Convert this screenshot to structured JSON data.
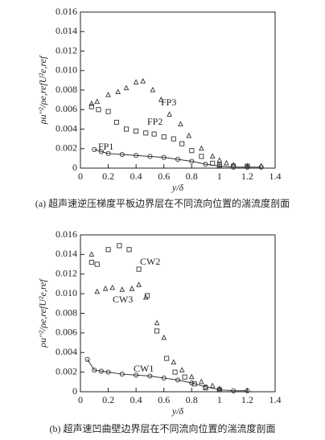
{
  "chart_data": [
    {
      "type": "scatter",
      "caption": "(a) 超声速逆压梯度平板边界层在不同流向位置的湍流度剖面",
      "x_label": "y/δ",
      "y_label": "ρu′′²/ρe,refU²e,ref",
      "xlim": [
        0,
        1.4
      ],
      "ylim": [
        0,
        0.016
      ],
      "xticks": [
        0,
        0.2,
        0.4,
        0.6,
        0.8,
        1,
        1.2,
        1.4
      ],
      "yticks": [
        0,
        0.002,
        0.004,
        0.006,
        0.008,
        {
          "value": 0.01,
          "label": "0.010"
        },
        0.012,
        0.014,
        0.016
      ],
      "series": [
        {
          "name": "FP1",
          "color": "#333333",
          "marker": "circle",
          "line": true,
          "x": [
            0.1,
            0.15,
            0.2,
            0.3,
            0.4,
            0.5,
            0.6,
            0.7,
            0.8,
            0.9,
            1.0,
            1.1,
            1.2,
            1.3
          ],
          "values": [
            0.0019,
            0.0017,
            0.0015,
            0.0014,
            0.0013,
            0.0012,
            0.0011,
            0.0009,
            0.0007,
            0.0004,
            0.0002,
            0.0001,
            0.0001,
            0.0001
          ]
        },
        {
          "name": "FP2",
          "color": "#333333",
          "marker": "square",
          "line": false,
          "x": [
            0.08,
            0.13,
            0.2,
            0.26,
            0.33,
            0.4,
            0.47,
            0.53,
            0.6,
            0.67,
            0.73,
            0.8,
            0.87,
            0.95,
            1.0,
            1.1,
            1.2
          ],
          "values": [
            0.0063,
            0.006,
            0.0058,
            0.0047,
            0.004,
            0.0038,
            0.0036,
            0.0035,
            0.0032,
            0.003,
            0.0025,
            0.0018,
            0.0012,
            0.0005,
            0.0003,
            0.0002,
            0.0002
          ]
        },
        {
          "name": "FP3",
          "color": "#333333",
          "marker": "triangle",
          "line": false,
          "x": [
            0.08,
            0.12,
            0.2,
            0.27,
            0.33,
            0.4,
            0.45,
            0.52,
            0.58,
            0.64,
            0.72,
            0.78,
            0.87,
            0.95,
            1.0,
            1.05,
            1.1,
            1.2,
            1.3
          ],
          "values": [
            0.0066,
            0.0068,
            0.0075,
            0.0078,
            0.0082,
            0.0088,
            0.0089,
            0.008,
            0.007,
            0.0055,
            0.0045,
            0.0033,
            0.002,
            0.0012,
            0.0008,
            0.0005,
            0.0003,
            0.0002,
            0.0002
          ]
        }
      ]
    },
    {
      "type": "scatter",
      "caption": "(b) 超声速凹曲壁边界层在不同流向位置的湍流度剖面",
      "x_label": "y/δ",
      "y_label": "ρu′′²/ρe,refU²e,ref",
      "xlim": [
        0,
        1.4
      ],
      "ylim": [
        0,
        0.016
      ],
      "xticks": [
        0,
        0.2,
        0.4,
        0.6,
        0.8,
        1,
        1.2,
        1.4
      ],
      "yticks": [
        0,
        0.002,
        0.004,
        0.006,
        0.008,
        {
          "value": 0.01,
          "label": "0.010"
        },
        0.012,
        0.014,
        0.016
      ],
      "series": [
        {
          "name": "CW1",
          "color": "#333333",
          "marker": "circle",
          "line": true,
          "x": [
            0.05,
            0.1,
            0.15,
            0.2,
            0.3,
            0.4,
            0.5,
            0.6,
            0.7,
            0.8,
            0.9,
            1.0,
            1.1,
            1.2
          ],
          "values": [
            0.0033,
            0.0022,
            0.0021,
            0.002,
            0.0018,
            0.0017,
            0.0016,
            0.0014,
            0.0012,
            0.0009,
            0.0005,
            0.0002,
            0.0001,
            0.0001
          ]
        },
        {
          "name": "CW2",
          "color": "#333333",
          "marker": "square",
          "line": false,
          "x": [
            0.08,
            0.12,
            0.2,
            0.28,
            0.35,
            0.42,
            0.48,
            0.55,
            0.62,
            0.68,
            0.75,
            0.82,
            0.9,
            1.0
          ],
          "values": [
            0.0132,
            0.013,
            0.0145,
            0.0149,
            0.0145,
            0.0125,
            0.0098,
            0.0062,
            0.0034,
            0.002,
            0.0015,
            0.0008,
            0.0004,
            0.0002
          ]
        },
        {
          "name": "CW3",
          "color": "#333333",
          "marker": "triangle",
          "line": false,
          "x": [
            0.08,
            0.12,
            0.18,
            0.23,
            0.3,
            0.37,
            0.42,
            0.47,
            0.55,
            0.6,
            0.67,
            0.73,
            0.8,
            0.87,
            0.95,
            1.0
          ],
          "values": [
            0.014,
            0.0102,
            0.0105,
            0.0106,
            0.0104,
            0.0105,
            0.0109,
            0.0096,
            0.007,
            0.0055,
            0.003,
            0.0022,
            0.0015,
            0.001,
            0.0006,
            0.0003
          ]
        }
      ]
    }
  ]
}
